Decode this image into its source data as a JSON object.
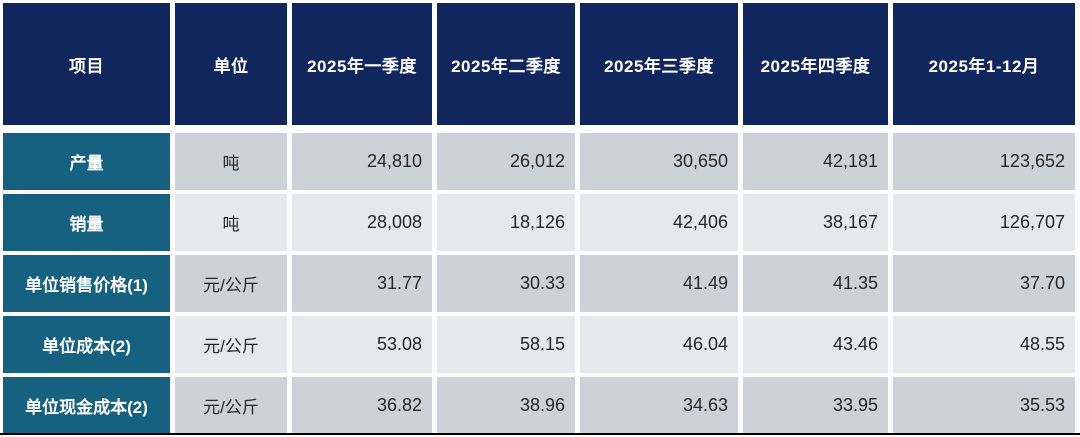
{
  "colors": {
    "header_bg": "#12265e",
    "header_text": "#ffffff",
    "label_bg": "#16617f",
    "row_odd_bg": "#cdd1d8",
    "row_even_bg": "#e6e9ec",
    "cell_text": "#262626",
    "bottom_rule": "#000000"
  },
  "table": {
    "columns": [
      {
        "key": "item",
        "label": "项目"
      },
      {
        "key": "unit",
        "label": "单位"
      },
      {
        "key": "q1",
        "label": "2025年一季度"
      },
      {
        "key": "q2",
        "label": "2025年二季度"
      },
      {
        "key": "q3",
        "label": "2025年三季度"
      },
      {
        "key": "q4",
        "label": "2025年四季度"
      },
      {
        "key": "full_year",
        "label": "2025年1-12月"
      }
    ],
    "rows": [
      {
        "item": "产量",
        "unit": "吨",
        "q1": "24,810",
        "q2": "26,012",
        "q3": "30,650",
        "q4": "42,181",
        "full_year": "123,652"
      },
      {
        "item": "销量",
        "unit": "吨",
        "q1": "28,008",
        "q2": "18,126",
        "q3": "42,406",
        "q4": "38,167",
        "full_year": "126,707"
      },
      {
        "item": "单位销售价格(1)",
        "unit": "元/公斤",
        "q1": "31.77",
        "q2": "30.33",
        "q3": "41.49",
        "q4": "41.35",
        "full_year": "37.70"
      },
      {
        "item": "单位成本(2)",
        "unit": "元/公斤",
        "q1": "53.08",
        "q2": "58.15",
        "q3": "46.04",
        "q4": "43.46",
        "full_year": "48.55"
      },
      {
        "item": "单位现金成本(2)",
        "unit": "元/公斤",
        "q1": "36.82",
        "q2": "38.96",
        "q3": "34.63",
        "q4": "33.95",
        "full_year": "35.53"
      }
    ]
  },
  "chart_data": {
    "type": "table",
    "title": "",
    "columns": [
      "项目",
      "单位",
      "2025年一季度",
      "2025年二季度",
      "2025年三季度",
      "2025年四季度",
      "2025年1-12月"
    ],
    "rows": [
      [
        "产量",
        "吨",
        24810,
        26012,
        30650,
        42181,
        123652
      ],
      [
        "销量",
        "吨",
        28008,
        18126,
        42406,
        38167,
        126707
      ],
      [
        "单位销售价格(1)",
        "元/公斤",
        31.77,
        30.33,
        41.49,
        41.35,
        37.7
      ],
      [
        "单位成本(2)",
        "元/公斤",
        53.08,
        58.15,
        46.04,
        43.46,
        48.55
      ],
      [
        "单位现金成本(2)",
        "元/公斤",
        36.82,
        38.96,
        34.63,
        33.95,
        35.53
      ]
    ]
  }
}
